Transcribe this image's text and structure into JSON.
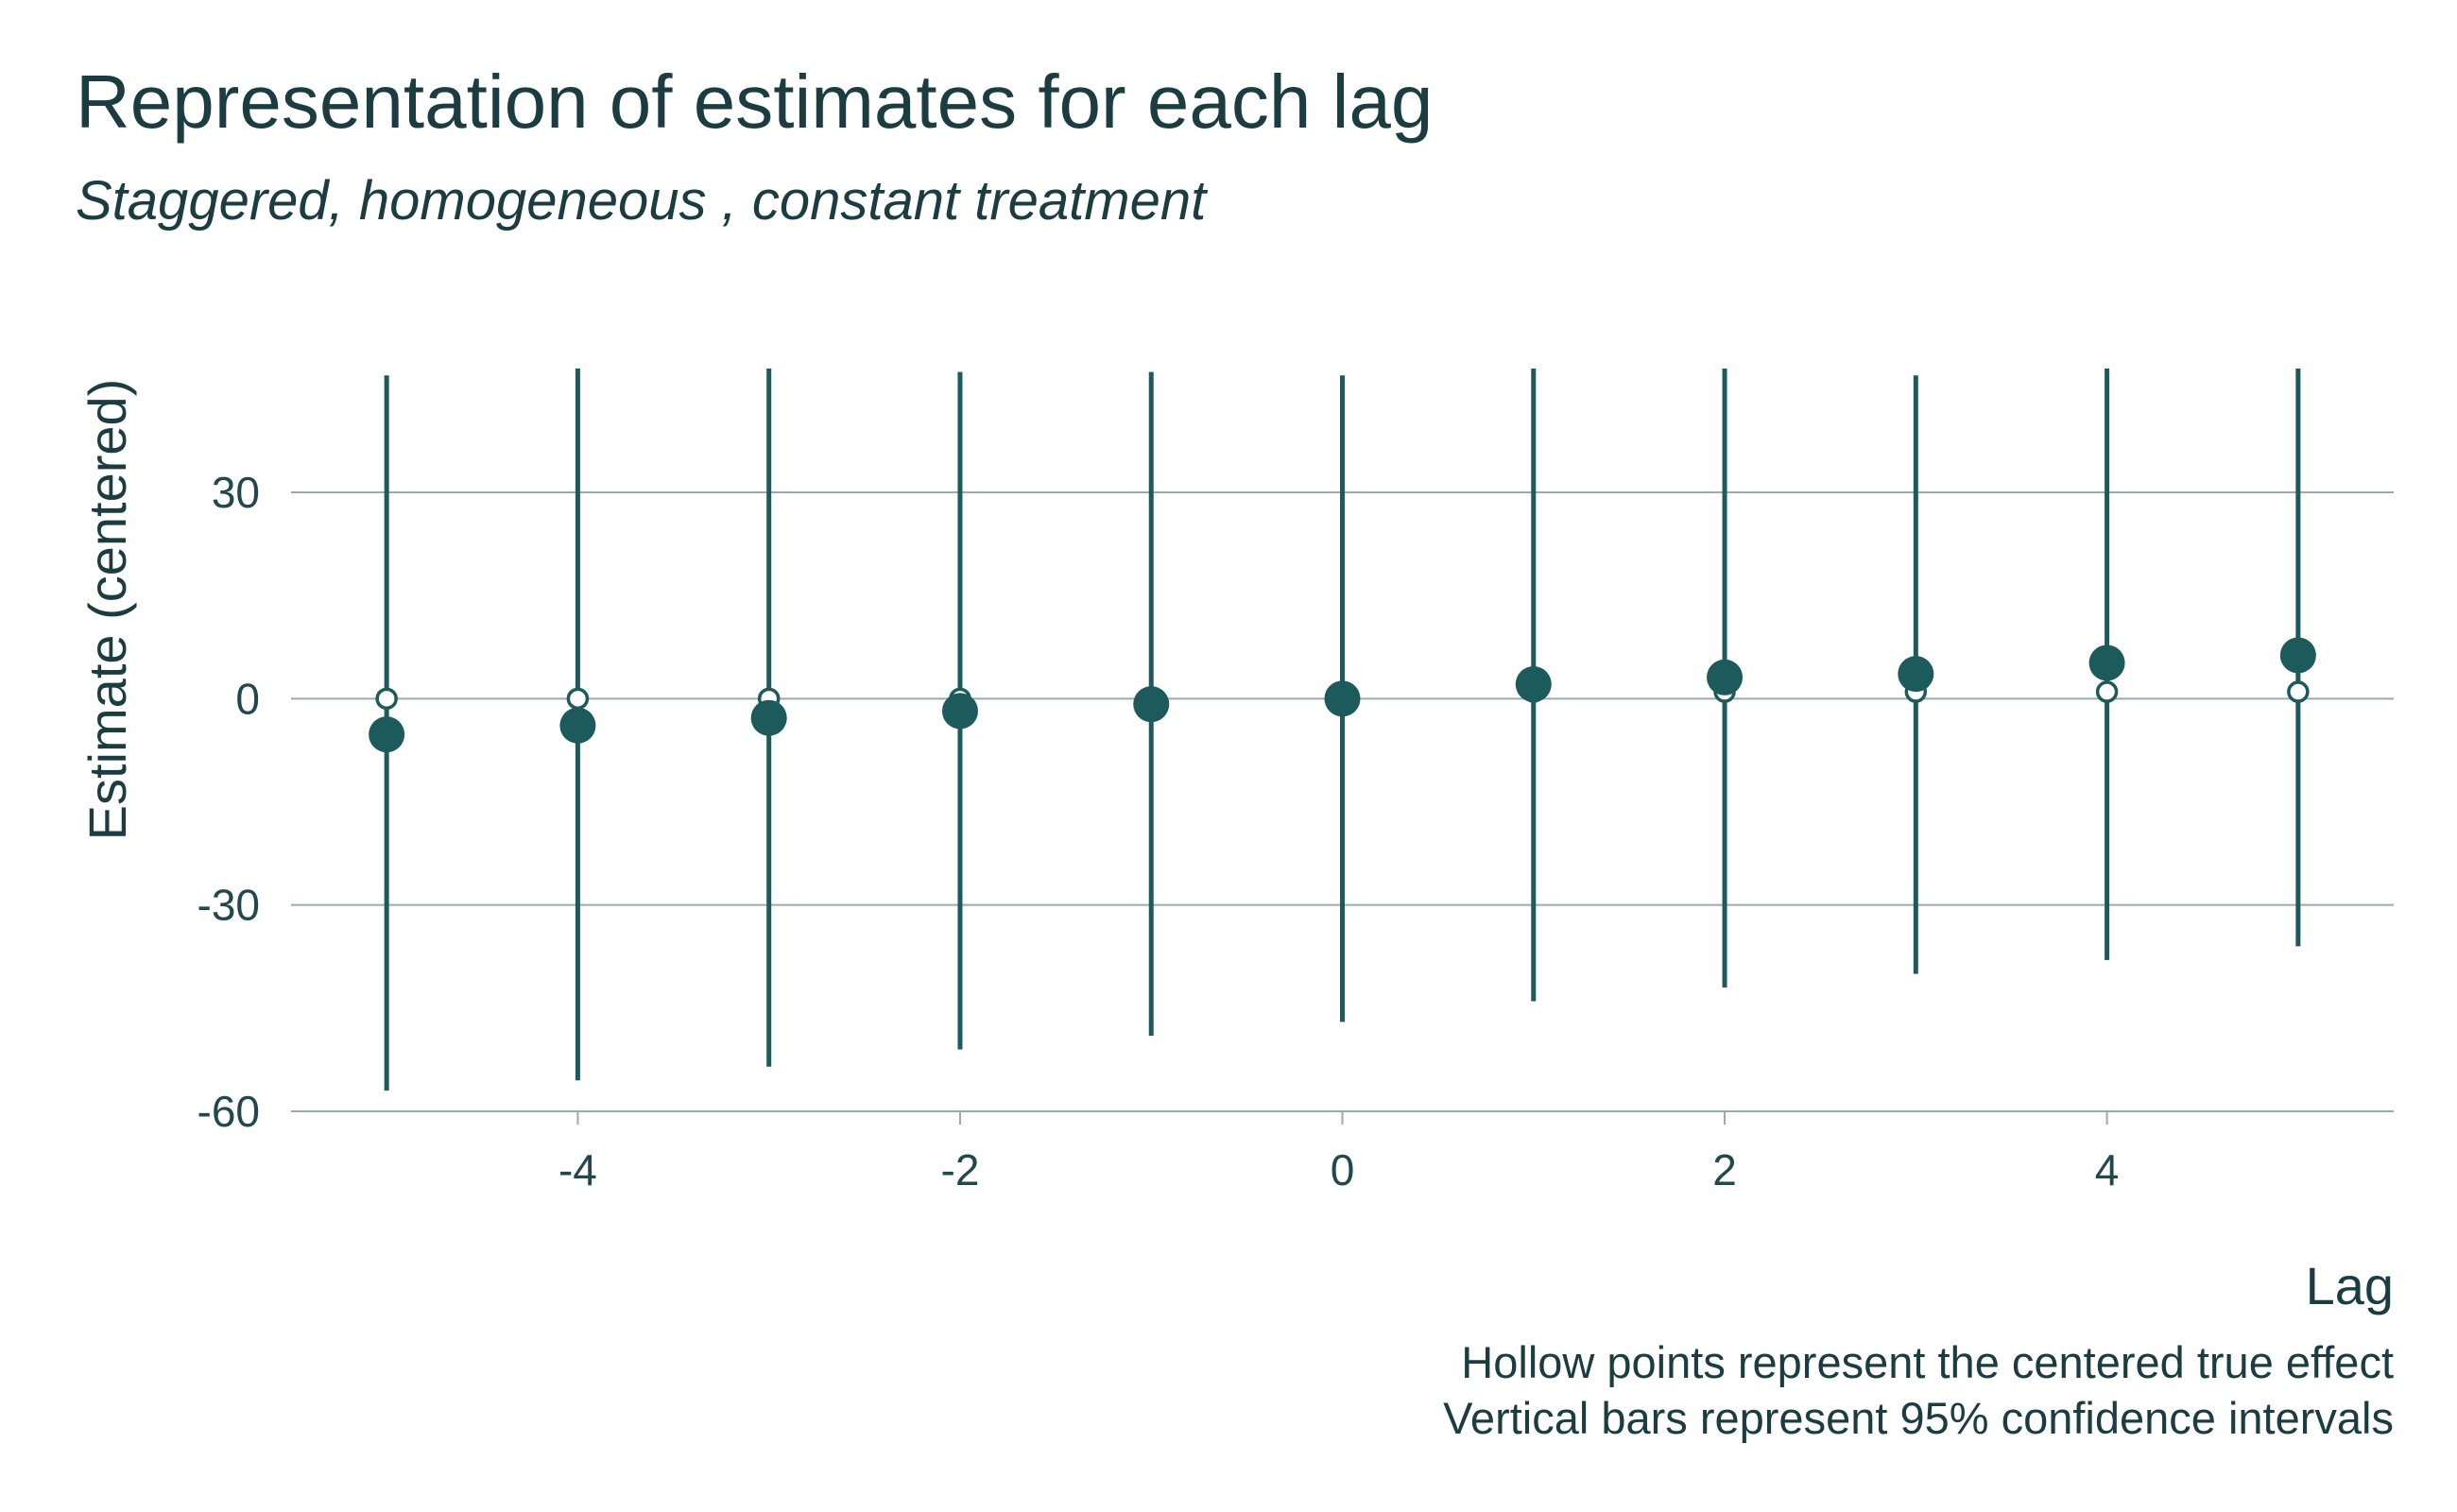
{
  "chart_data": {
    "type": "scatter",
    "title": "Representation of estimates for each lag",
    "subtitle": "Staggered, homogeneous , constant treatment",
    "xlabel": "Lag",
    "ylabel": "Estimate (centered)",
    "caption": [
      "Hollow points represent the centered true effect",
      "Vertical bars represent 95% confidence intervals"
    ],
    "xlim": [
      -5.5,
      5.5
    ],
    "ylim": [
      -60,
      48
    ],
    "x_ticks": [
      -4,
      -2,
      0,
      2,
      4
    ],
    "y_ticks": [
      -60,
      -30,
      0,
      30
    ],
    "grid": "horizontal",
    "color": "#1d5a5c",
    "grid_color": "#9aabaf",
    "series": [
      {
        "name": "Hollow points represent the centered true effect",
        "marker": "hollow",
        "x": [
          -5,
          -4,
          -3,
          -2,
          -1,
          0,
          1,
          2,
          3,
          4,
          5
        ],
        "y": [
          0,
          0,
          0,
          0,
          0,
          0,
          1,
          1,
          1,
          1,
          1
        ]
      },
      {
        "name": "Estimate",
        "marker": "filled",
        "x": [
          -5,
          -4,
          -3,
          -2,
          -1,
          0,
          1,
          2,
          3,
          4,
          5
        ],
        "y": [
          -5.2,
          -3.9,
          -2.8,
          -1.8,
          -0.8,
          0,
          2.1,
          3.1,
          3.6,
          5.2,
          6.3
        ]
      },
      {
        "name": "Vertical bars represent 95% confidence intervals",
        "marker": "errorbar",
        "x": [
          -5,
          -4,
          -3,
          -2,
          -1,
          0,
          1,
          2,
          3,
          4,
          5
        ],
        "lower": [
          -57,
          -55.5,
          -53.5,
          -51,
          -49,
          -47,
          -44,
          -42,
          -40,
          -38,
          -36
        ],
        "upper": [
          47,
          48,
          48,
          47.5,
          47.5,
          47,
          48,
          48,
          47,
          48,
          48
        ]
      }
    ]
  }
}
